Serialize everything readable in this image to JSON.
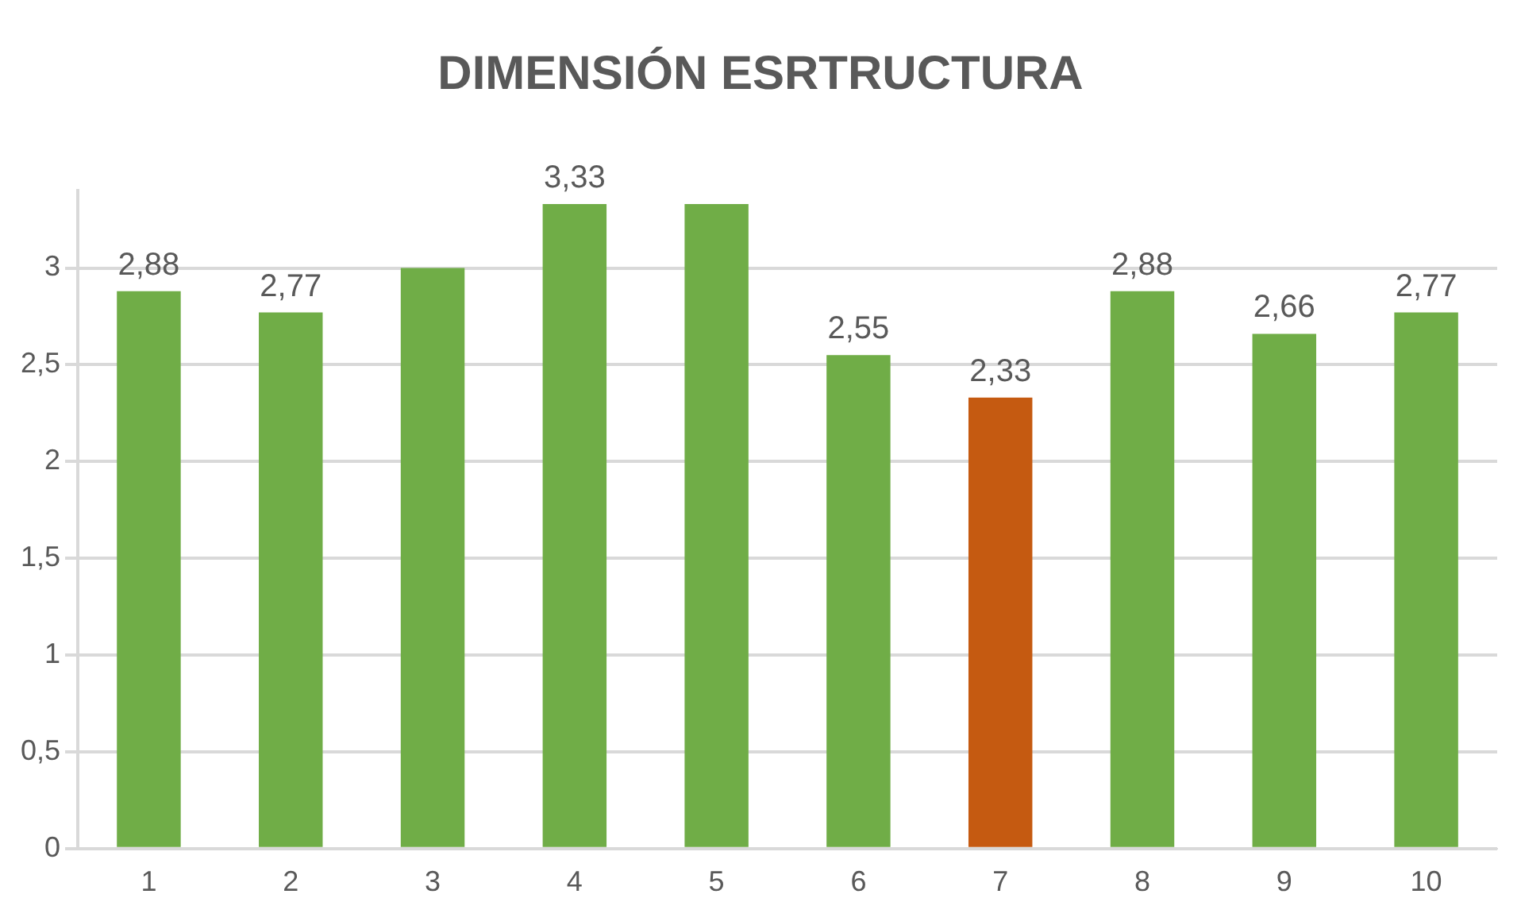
{
  "chart_data": {
    "type": "bar",
    "title": "DIMENSIÓN ESRTRUCTURA",
    "categories": [
      "1",
      "2",
      "3",
      "4",
      "5",
      "6",
      "7",
      "8",
      "9",
      "10"
    ],
    "values": [
      2.88,
      2.77,
      3,
      3.33,
      3.33,
      2.55,
      2.33,
      2.88,
      2.66,
      2.77
    ],
    "colors": [
      "#70ad47",
      "#70ad47",
      "#70ad47",
      "#70ad47",
      "#70ad47",
      "#70ad47",
      "#c55a11",
      "#70ad47",
      "#70ad47",
      "#70ad47"
    ],
    "value_labels": [
      "2,88",
      "2,77",
      null,
      "3,33",
      null,
      "2,55",
      "2,33",
      "2,88",
      "2,66",
      "2,77"
    ],
    "ylim": [
      0,
      3.4
    ],
    "yticks": [
      {
        "value": 0,
        "label": "0"
      },
      {
        "value": 0.5,
        "label": "0,5"
      },
      {
        "value": 1,
        "label": "1"
      },
      {
        "value": 1.5,
        "label": "1,5"
      },
      {
        "value": 2,
        "label": "2"
      },
      {
        "value": 2.5,
        "label": "2,5"
      },
      {
        "value": 3,
        "label": "3"
      }
    ],
    "grid": "y",
    "legend": false
  }
}
